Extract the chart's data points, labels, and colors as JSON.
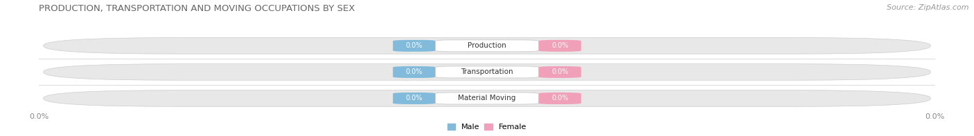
{
  "title": "PRODUCTION, TRANSPORTATION AND MOVING OCCUPATIONS BY SEX",
  "source": "Source: ZipAtlas.com",
  "categories": [
    "Production",
    "Transportation",
    "Material Moving"
  ],
  "male_values": [
    0.0,
    0.0,
    0.0
  ],
  "female_values": [
    0.0,
    0.0,
    0.0
  ],
  "male_color": "#82BADB",
  "female_color": "#F0A0B8",
  "bar_bg_color": "#E8E8E8",
  "bar_bg_color2": "#F2F2F2",
  "label_bg_color": "#FFFFFF",
  "title_fontsize": 9.5,
  "source_fontsize": 8,
  "tick_label": "0.0%",
  "xlim": [
    -1,
    1
  ],
  "figsize": [
    14.06,
    1.97
  ],
  "dpi": 100,
  "background_color": "#FFFFFF",
  "bar_height": 0.62,
  "row_sep_color": "#CCCCCC"
}
